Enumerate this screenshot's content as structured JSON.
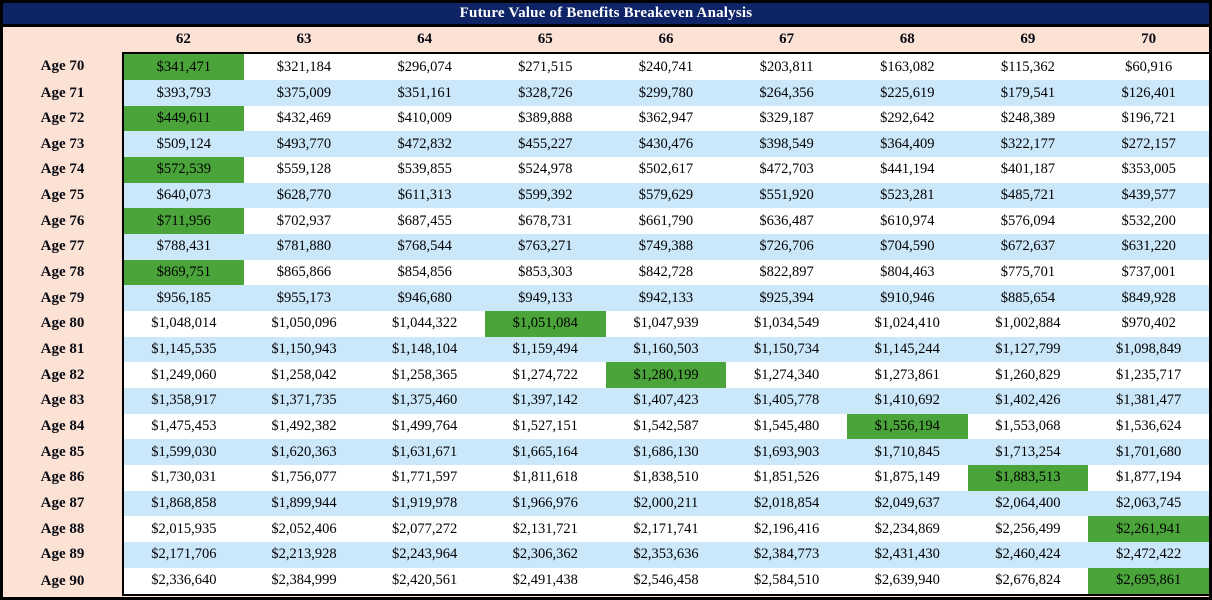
{
  "title": "Future Value of Benefits Breakeven Analysis",
  "colors": {
    "title_bar_bg": "#0F2466",
    "title_text": "#FFFFFF",
    "header_bg": "#FBE2D5",
    "row_bg": "#FFFFFF",
    "row_alt_bg": "#CBE7FA",
    "highlight_bg": "#4AA43A",
    "border": "#000000"
  },
  "chart_data": {
    "type": "table",
    "title": "Future Value of Benefits Breakeven Analysis",
    "column_headers": [
      "62",
      "63",
      "64",
      "65",
      "66",
      "67",
      "68",
      "69",
      "70"
    ],
    "rows": [
      {
        "label": "Age 70",
        "highlight_col": 0,
        "values": [
          "$341,471",
          "$321,184",
          "$296,074",
          "$271,515",
          "$240,741",
          "$203,811",
          "$163,082",
          "$115,362",
          "$60,916"
        ]
      },
      {
        "label": "Age 71",
        "highlight_col": 0,
        "values": [
          "$393,793",
          "$375,009",
          "$351,161",
          "$328,726",
          "$299,780",
          "$264,356",
          "$225,619",
          "$179,541",
          "$126,401"
        ]
      },
      {
        "label": "Age 72",
        "highlight_col": 0,
        "values": [
          "$449,611",
          "$432,469",
          "$410,009",
          "$389,888",
          "$362,947",
          "$329,187",
          "$292,642",
          "$248,389",
          "$196,721"
        ]
      },
      {
        "label": "Age 73",
        "highlight_col": 0,
        "values": [
          "$509,124",
          "$493,770",
          "$472,832",
          "$455,227",
          "$430,476",
          "$398,549",
          "$364,409",
          "$322,177",
          "$272,157"
        ]
      },
      {
        "label": "Age 74",
        "highlight_col": 0,
        "values": [
          "$572,539",
          "$559,128",
          "$539,855",
          "$524,978",
          "$502,617",
          "$472,703",
          "$441,194",
          "$401,187",
          "$353,005"
        ]
      },
      {
        "label": "Age 75",
        "highlight_col": 0,
        "values": [
          "$640,073",
          "$628,770",
          "$611,313",
          "$599,392",
          "$579,629",
          "$551,920",
          "$523,281",
          "$485,721",
          "$439,577"
        ]
      },
      {
        "label": "Age 76",
        "highlight_col": 0,
        "values": [
          "$711,956",
          "$702,937",
          "$687,455",
          "$678,731",
          "$661,790",
          "$636,487",
          "$610,974",
          "$576,094",
          "$532,200"
        ]
      },
      {
        "label": "Age 77",
        "highlight_col": 0,
        "values": [
          "$788,431",
          "$781,880",
          "$768,544",
          "$763,271",
          "$749,388",
          "$726,706",
          "$704,590",
          "$672,637",
          "$631,220"
        ]
      },
      {
        "label": "Age 78",
        "highlight_col": 0,
        "values": [
          "$869,751",
          "$865,866",
          "$854,856",
          "$853,303",
          "$842,728",
          "$822,897",
          "$804,463",
          "$775,701",
          "$737,001"
        ]
      },
      {
        "label": "Age 79",
        "highlight_col": 0,
        "values": [
          "$956,185",
          "$955,173",
          "$946,680",
          "$949,133",
          "$942,133",
          "$925,394",
          "$910,946",
          "$885,654",
          "$849,928"
        ]
      },
      {
        "label": "Age 80",
        "highlight_col": 3,
        "values": [
          "$1,048,014",
          "$1,050,096",
          "$1,044,322",
          "$1,051,084",
          "$1,047,939",
          "$1,034,549",
          "$1,024,410",
          "$1,002,884",
          "$970,402"
        ]
      },
      {
        "label": "Age 81",
        "highlight_col": 4,
        "values": [
          "$1,145,535",
          "$1,150,943",
          "$1,148,104",
          "$1,159,494",
          "$1,160,503",
          "$1,150,734",
          "$1,145,244",
          "$1,127,799",
          "$1,098,849"
        ]
      },
      {
        "label": "Age 82",
        "highlight_col": 4,
        "values": [
          "$1,249,060",
          "$1,258,042",
          "$1,258,365",
          "$1,274,722",
          "$1,280,199",
          "$1,274,340",
          "$1,273,861",
          "$1,260,829",
          "$1,235,717"
        ]
      },
      {
        "label": "Age 83",
        "highlight_col": 6,
        "values": [
          "$1,358,917",
          "$1,371,735",
          "$1,375,460",
          "$1,397,142",
          "$1,407,423",
          "$1,405,778",
          "$1,410,692",
          "$1,402,426",
          "$1,381,477"
        ]
      },
      {
        "label": "Age 84",
        "highlight_col": 6,
        "values": [
          "$1,475,453",
          "$1,492,382",
          "$1,499,764",
          "$1,527,151",
          "$1,542,587",
          "$1,545,480",
          "$1,556,194",
          "$1,553,068",
          "$1,536,624"
        ]
      },
      {
        "label": "Age 85",
        "highlight_col": 7,
        "values": [
          "$1,599,030",
          "$1,620,363",
          "$1,631,671",
          "$1,665,164",
          "$1,686,130",
          "$1,693,903",
          "$1,710,845",
          "$1,713,254",
          "$1,701,680"
        ]
      },
      {
        "label": "Age 86",
        "highlight_col": 7,
        "values": [
          "$1,730,031",
          "$1,756,077",
          "$1,771,597",
          "$1,811,618",
          "$1,838,510",
          "$1,851,526",
          "$1,875,149",
          "$1,883,513",
          "$1,877,194"
        ]
      },
      {
        "label": "Age 87",
        "highlight_col": 7,
        "values": [
          "$1,868,858",
          "$1,899,944",
          "$1,919,978",
          "$1,966,976",
          "$2,000,211",
          "$2,018,854",
          "$2,049,637",
          "$2,064,400",
          "$2,063,745"
        ]
      },
      {
        "label": "Age 88",
        "highlight_col": 8,
        "values": [
          "$2,015,935",
          "$2,052,406",
          "$2,077,272",
          "$2,131,721",
          "$2,171,741",
          "$2,196,416",
          "$2,234,869",
          "$2,256,499",
          "$2,261,941"
        ]
      },
      {
        "label": "Age 89",
        "highlight_col": 8,
        "values": [
          "$2,171,706",
          "$2,213,928",
          "$2,243,964",
          "$2,306,362",
          "$2,353,636",
          "$2,384,773",
          "$2,431,430",
          "$2,460,424",
          "$2,472,422"
        ]
      },
      {
        "label": "Age 90",
        "highlight_col": 8,
        "values": [
          "$2,336,640",
          "$2,384,999",
          "$2,420,561",
          "$2,491,438",
          "$2,546,458",
          "$2,584,510",
          "$2,639,940",
          "$2,676,824",
          "$2,695,861"
        ]
      }
    ]
  }
}
